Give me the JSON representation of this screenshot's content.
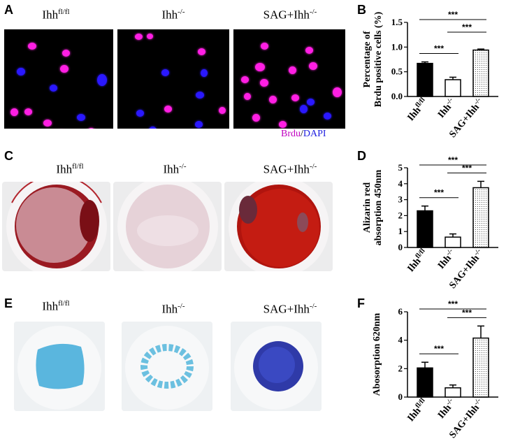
{
  "panels": {
    "A": {
      "letter": "A",
      "headers": [
        {
          "base": "Ihh",
          "sup": "fl/fl"
        },
        {
          "base": "Ihh",
          "sup": "-/-"
        },
        {
          "base": "SAG+Ihh",
          "sup": "-/-"
        }
      ],
      "stain_brdu": "Brdu",
      "stain_sep": "/",
      "stain_dapi": "DAPI",
      "colors": {
        "brdu": "#ff1fe3",
        "dapi": "#2a18ff",
        "brdu_label": "#c000c0",
        "dapi_label": "#2020e0"
      }
    },
    "B": {
      "letter": "B"
    },
    "C": {
      "letter": "C",
      "headers": [
        {
          "base": "Ihh",
          "sup": "fl/fl"
        },
        {
          "base": "Ihh",
          "sup": "-/-"
        },
        {
          "base": "SAG+Ihh",
          "sup": "-/-"
        }
      ]
    },
    "D": {
      "letter": "D"
    },
    "E": {
      "letter": "E",
      "headers": [
        {
          "base": "Ihh",
          "sup": "fl/fl"
        },
        {
          "base": "Ihh",
          "sup": "-/-"
        },
        {
          "base": "SAG+Ihh",
          "sup": "-/-"
        }
      ]
    },
    "F": {
      "letter": "F"
    }
  },
  "chart_data": [
    {
      "panel": "B",
      "type": "bar",
      "categories": [
        {
          "base": "Ihh",
          "sup": "fl/fl"
        },
        {
          "base": "Ihh",
          "sup": "-/-"
        },
        {
          "base": "SAG+Ihh",
          "sup": "-/-"
        }
      ],
      "values": [
        0.67,
        0.34,
        0.94
      ],
      "errors": [
        0.03,
        0.05,
        0.02
      ],
      "fills": [
        "solid",
        "white",
        "dotted"
      ],
      "ylabel": [
        "Percentage of",
        "Brdu positive cells (%)"
      ],
      "ylim": [
        0,
        1.5
      ],
      "yticks": [
        "0.0",
        "0.5",
        "1.0",
        "1.5"
      ],
      "significance": [
        {
          "from": 0,
          "to": 2,
          "label": "***"
        },
        {
          "from": 0,
          "to": 1,
          "label": "***"
        },
        {
          "from": 1,
          "to": 2,
          "label": "***"
        }
      ]
    },
    {
      "panel": "D",
      "type": "bar",
      "categories": [
        {
          "base": "Ihh",
          "sup": "fl/fl"
        },
        {
          "base": "Ihh",
          "sup": "-/-"
        },
        {
          "base": "SAG+Ihh",
          "sup": "-/-"
        }
      ],
      "values": [
        2.3,
        0.65,
        3.75
      ],
      "errors": [
        0.3,
        0.2,
        0.4
      ],
      "fills": [
        "solid",
        "white",
        "dotted"
      ],
      "ylabel": [
        "Alizarin red",
        "absorption 450nm"
      ],
      "ylim": [
        0,
        5
      ],
      "yticks": [
        "0",
        "1",
        "2",
        "3",
        "4",
        "5"
      ],
      "significance": [
        {
          "from": 0,
          "to": 2,
          "label": "***"
        },
        {
          "from": 1,
          "to": 2,
          "label": "***"
        },
        {
          "from": 0,
          "to": 1,
          "label": "***"
        }
      ]
    },
    {
      "panel": "F",
      "type": "bar",
      "categories": [
        {
          "base": "Ihh",
          "sup": "fl/fl"
        },
        {
          "base": "Ihh",
          "sup": "-/-"
        },
        {
          "base": "SAG+Ihh",
          "sup": "-/-"
        }
      ],
      "values": [
        2.05,
        0.65,
        4.15
      ],
      "errors": [
        0.4,
        0.2,
        0.85
      ],
      "fills": [
        "solid",
        "white",
        "dotted"
      ],
      "ylabel": [
        "Abosorption 620nm"
      ],
      "ylim": [
        0,
        6
      ],
      "yticks": [
        "0",
        "2",
        "4",
        "6"
      ],
      "significance": [
        {
          "from": 0,
          "to": 2,
          "label": "***"
        },
        {
          "from": 1,
          "to": 2,
          "label": "***"
        },
        {
          "from": 0,
          "to": 1,
          "label": "***"
        }
      ]
    }
  ]
}
